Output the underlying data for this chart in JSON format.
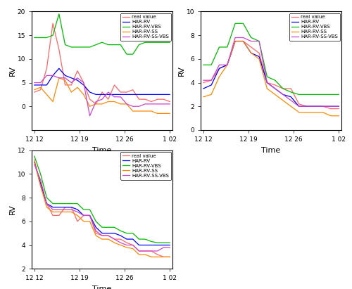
{
  "legend_labels": [
    "real value",
    "HAR-RV",
    "HAR-RV-VBS",
    "HAR-RV-SS",
    "HAR-RV-SS-VBS"
  ],
  "colors": [
    "#FF6666",
    "#0000FF",
    "#00BB00",
    "#FF8800",
    "#CC44CC"
  ],
  "xtick_labels": [
    "12 12",
    "12 19",
    "12 26",
    "1 02"
  ],
  "xlabel": "Time",
  "ylabel": "RV",
  "plot1": {
    "ylim": [
      -5,
      20
    ],
    "yticks": [
      0,
      5,
      10,
      15,
      20
    ],
    "real_value": [
      3.0,
      3.5,
      8.0,
      17.5,
      12.0,
      4.5,
      4.5,
      7.5,
      5.0,
      1.5,
      0.5,
      3.0,
      1.5,
      4.5,
      3.0,
      3.0,
      3.5,
      1.5,
      1.5,
      1.0,
      1.5,
      1.5,
      1.0
    ],
    "har_rv": [
      4.5,
      4.5,
      4.5,
      6.5,
      8.0,
      6.5,
      6.0,
      5.5,
      4.5,
      3.0,
      2.5,
      2.5,
      2.5,
      2.5,
      2.5,
      2.5,
      2.5,
      2.5,
      2.5,
      2.5,
      2.5,
      2.5,
      2.5
    ],
    "har_rv_vbs": [
      14.5,
      14.5,
      14.5,
      15.0,
      19.5,
      13.0,
      12.5,
      12.5,
      12.5,
      12.5,
      13.0,
      13.5,
      13.0,
      13.0,
      13.0,
      11.0,
      11.0,
      13.0,
      13.5,
      13.5,
      13.5,
      13.5,
      13.5
    ],
    "har_rv_ss": [
      3.5,
      4.0,
      2.5,
      1.0,
      6.0,
      5.5,
      3.0,
      4.0,
      2.5,
      0.0,
      0.5,
      0.5,
      1.0,
      1.0,
      0.5,
      0.5,
      -1.0,
      -1.0,
      -1.0,
      -1.0,
      -1.5,
      -1.5,
      -1.5
    ],
    "har_rv_ss_vbs": [
      5.0,
      5.0,
      6.5,
      6.5,
      6.0,
      6.0,
      5.0,
      6.0,
      5.0,
      -2.0,
      1.0,
      1.5,
      3.0,
      2.0,
      2.0,
      0.5,
      0.0,
      0.0,
      0.5,
      0.5,
      0.5,
      0.5,
      0.5
    ]
  },
  "plot2": {
    "ylim": [
      0,
      10
    ],
    "yticks": [
      0,
      2,
      4,
      6,
      8,
      10
    ],
    "real_value": [
      4.0,
      4.2,
      5.2,
      5.5,
      7.5,
      7.5,
      7.0,
      6.5,
      4.0,
      3.8,
      3.5,
      3.5,
      2.2,
      2.0,
      2.0,
      2.0,
      1.8,
      1.8
    ],
    "har_rv": [
      3.5,
      3.8,
      5.2,
      5.5,
      7.5,
      7.5,
      6.5,
      6.2,
      4.0,
      3.5,
      3.0,
      2.8,
      2.0,
      2.0,
      2.0,
      2.0,
      2.0,
      2.0
    ],
    "har_rv_vbs": [
      5.5,
      5.5,
      7.0,
      7.0,
      9.0,
      9.0,
      7.8,
      7.5,
      4.5,
      4.2,
      3.5,
      3.2,
      3.0,
      3.0,
      3.0,
      3.0,
      3.0,
      3.0
    ],
    "har_rv_ss": [
      2.8,
      3.0,
      4.5,
      5.5,
      7.5,
      7.5,
      6.5,
      6.0,
      3.5,
      3.0,
      2.5,
      2.0,
      1.5,
      1.5,
      1.5,
      1.5,
      1.2,
      1.2
    ],
    "har_rv_ss_vbs": [
      4.2,
      4.2,
      5.5,
      5.5,
      7.8,
      7.8,
      7.5,
      7.5,
      4.0,
      3.5,
      3.0,
      2.5,
      2.0,
      2.0,
      2.0,
      2.0,
      2.0,
      2.0
    ]
  },
  "plot3": {
    "ylim": [
      2,
      12
    ],
    "yticks": [
      2,
      4,
      6,
      8,
      10,
      12
    ],
    "real_value": [
      11.2,
      9.0,
      7.5,
      6.5,
      6.5,
      7.2,
      7.2,
      6.0,
      6.5,
      6.5,
      5.0,
      4.8,
      4.8,
      4.5,
      4.5,
      4.2,
      4.0,
      3.5,
      3.5,
      3.5,
      3.2,
      3.0,
      3.0
    ],
    "har_rv": [
      11.0,
      9.2,
      7.5,
      7.2,
      7.2,
      7.2,
      7.2,
      7.0,
      6.5,
      6.5,
      5.5,
      5.0,
      5.0,
      5.0,
      4.8,
      4.5,
      4.5,
      4.0,
      4.0,
      4.0,
      4.0,
      4.0,
      4.0
    ],
    "har_rv_vbs": [
      11.5,
      10.0,
      8.0,
      7.5,
      7.5,
      7.5,
      7.5,
      7.5,
      7.0,
      7.0,
      6.0,
      5.5,
      5.5,
      5.5,
      5.2,
      5.0,
      5.0,
      4.5,
      4.5,
      4.3,
      4.2,
      4.2,
      4.2
    ],
    "har_rv_ss": [
      11.0,
      9.0,
      7.2,
      6.8,
      6.8,
      6.8,
      6.8,
      6.5,
      6.0,
      6.0,
      4.8,
      4.5,
      4.5,
      4.2,
      4.0,
      3.8,
      3.7,
      3.2,
      3.2,
      3.0,
      3.0,
      3.0,
      3.0
    ],
    "har_rv_ss_vbs": [
      10.8,
      9.5,
      7.5,
      7.0,
      7.0,
      7.0,
      7.0,
      6.8,
      6.5,
      6.5,
      5.2,
      4.8,
      4.8,
      4.5,
      4.2,
      4.0,
      4.0,
      3.5,
      3.5,
      3.5,
      3.5,
      3.8,
      3.8
    ]
  }
}
